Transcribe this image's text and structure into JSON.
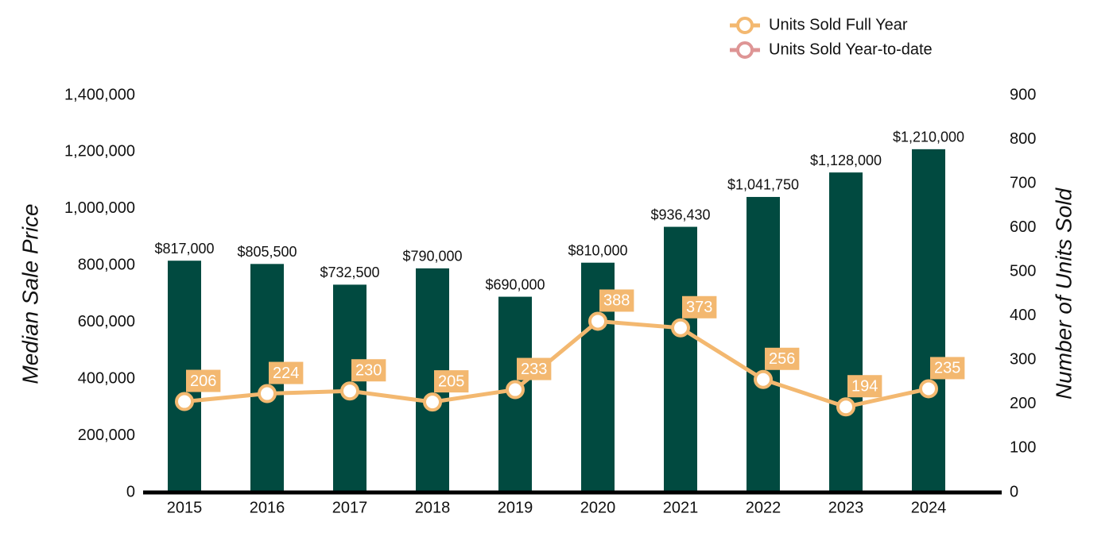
{
  "chart_data": {
    "type": "bar_line",
    "categories": [
      "2015",
      "2016",
      "2017",
      "2018",
      "2019",
      "2020",
      "2021",
      "2022",
      "2023",
      "2024"
    ],
    "values": [
      817000,
      805500,
      732500,
      790000,
      690000,
      810000,
      936430,
      1041750,
      1128000,
      1210000
    ],
    "value_labels": [
      "$817,000",
      "$805,500",
      "$732,500",
      "$790,000",
      "$690,000",
      "$810,000",
      "$936,430",
      "$1,041,750",
      "$1,128,000",
      "$1,210,000"
    ],
    "color": "#014a40",
    "series": [
      {
        "name": "Units Sold Full Year",
        "color": "#f3b870",
        "axis": "y2",
        "values": [
          206,
          224,
          230,
          205,
          233,
          388,
          373,
          256,
          194,
          235
        ]
      },
      {
        "name": "Units Sold Year-to-date",
        "color": "#de9595",
        "axis": "y2",
        "values": [
          null,
          null,
          null,
          null,
          null,
          null,
          null,
          null,
          null,
          null
        ]
      }
    ],
    "ylabel": "Median Sale Price",
    "y2label": "Number of Units Sold",
    "ylim": [
      0,
      1400000
    ],
    "yticks": [
      0,
      {
        "value": 200000,
        "label": "200,000"
      },
      {
        "value": 400000,
        "label": "400,000"
      },
      {
        "value": 600000,
        "label": "600,000"
      },
      {
        "value": 800000,
        "label": "800,000"
      },
      {
        "value": 1000000,
        "label": "1,000,000"
      },
      {
        "value": 1200000,
        "label": "1,200,000"
      },
      {
        "value": 1400000,
        "label": "1,400,000"
      }
    ],
    "y2lim": [
      0,
      900
    ],
    "y2ticks": [
      0,
      100,
      200,
      300,
      400,
      500,
      600,
      700,
      800,
      900
    ],
    "legend": "top"
  }
}
